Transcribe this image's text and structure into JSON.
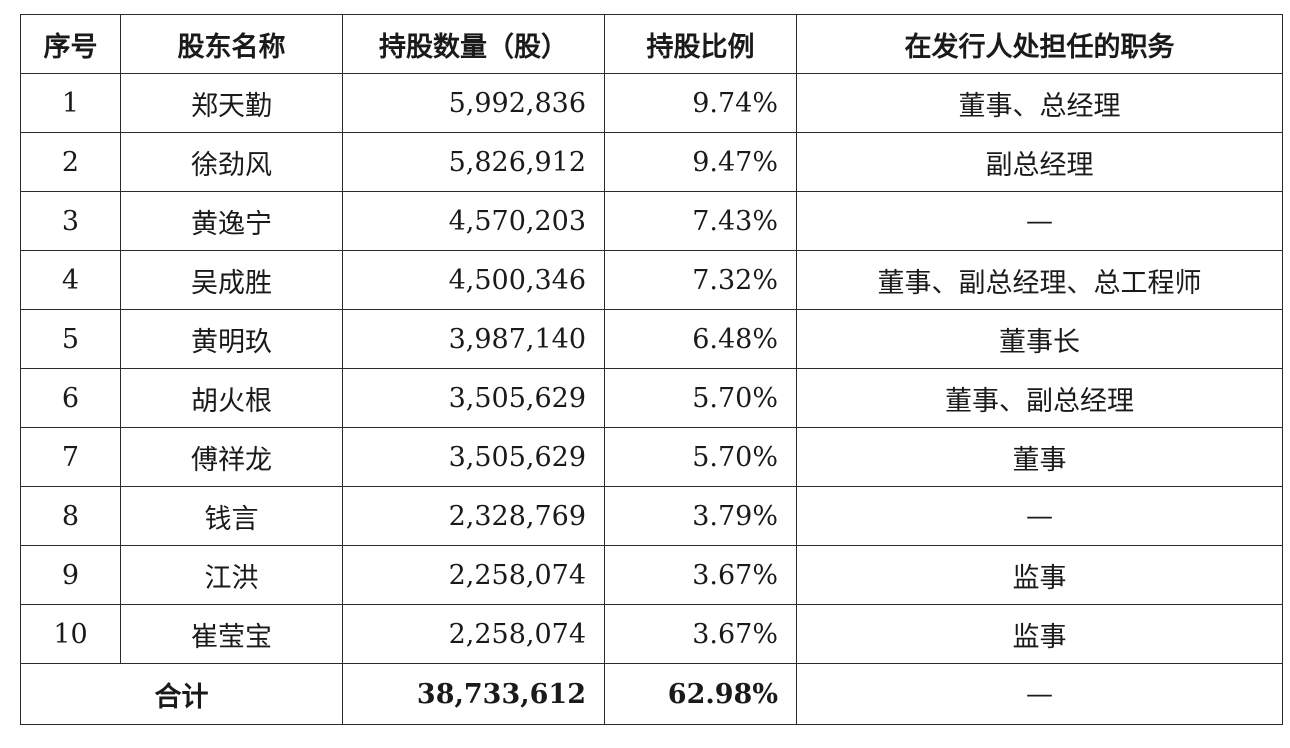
{
  "headers": [
    "序号",
    "股东名称",
    "持股数量（股）",
    "持股比例",
    "在发行人处担任的职务"
  ],
  "rows": [
    {
      "no": "1",
      "name": "郑天勤",
      "shares": "5,992,836",
      "ratio": "9.74%",
      "position": "董事、总经理"
    },
    {
      "no": "2",
      "name": "徐劲风",
      "shares": "5,826,912",
      "ratio": "9.47%",
      "position": "副总经理"
    },
    {
      "no": "3",
      "name": "黄逸宁",
      "shares": "4,570,203",
      "ratio": "7.43%",
      "position": "—"
    },
    {
      "no": "4",
      "name": "吴成胜",
      "shares": "4,500,346",
      "ratio": "7.32%",
      "position": "董事、副总经理、总工程师"
    },
    {
      "no": "5",
      "name": "黄明玖",
      "shares": "3,987,140",
      "ratio": "6.48%",
      "position": "董事长"
    },
    {
      "no": "6",
      "name": "胡火根",
      "shares": "3,505,629",
      "ratio": "5.70%",
      "position": "董事、副总经理"
    },
    {
      "no": "7",
      "name": "傅祥龙",
      "shares": "3,505,629",
      "ratio": "5.70%",
      "position": "董事"
    },
    {
      "no": "8",
      "name": "钱言",
      "shares": "2,328,769",
      "ratio": "3.79%",
      "position": "—"
    },
    {
      "no": "9",
      "name": "江洪",
      "shares": "2,258,074",
      "ratio": "3.67%",
      "position": "监事"
    },
    {
      "no": "10",
      "name": "崔莹宝",
      "shares": "2,258,074",
      "ratio": "3.67%",
      "position": "监事"
    }
  ],
  "total": {
    "label": "合计",
    "shares": "38,733,612",
    "ratio": "62.98%",
    "position": "—"
  }
}
